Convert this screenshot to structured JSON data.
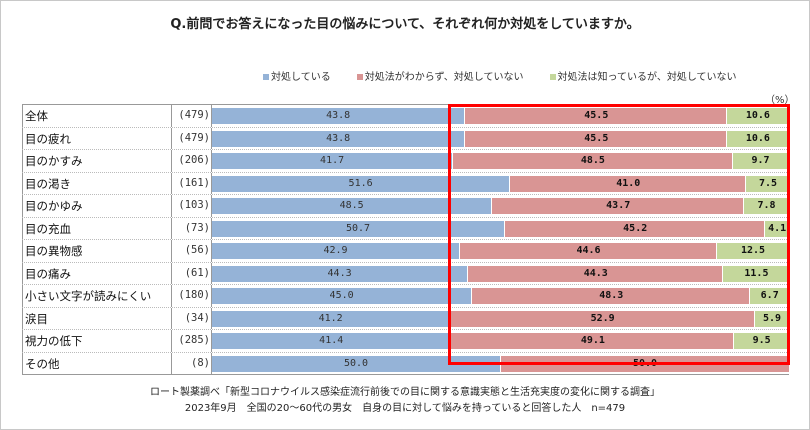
{
  "chart_data": {
    "type": "bar",
    "stacked": true,
    "orientation": "horizontal",
    "title": "Q.前問でお答えになった目の悩みについて、それぞれ何か対処をしていますか。",
    "unit": "（%）",
    "legend_position": "top",
    "series": [
      {
        "name": "対処している",
        "color": "#95b3d7",
        "values": [
          43.8,
          43.8,
          41.7,
          51.6,
          48.5,
          50.7,
          42.9,
          44.3,
          45.0,
          41.2,
          41.4,
          50.0
        ]
      },
      {
        "name": "対処法がわからず、対処していない",
        "color": "#d99594",
        "values": [
          45.5,
          45.5,
          48.5,
          41.0,
          43.7,
          45.2,
          44.6,
          44.3,
          48.3,
          52.9,
          49.1,
          50.0
        ]
      },
      {
        "name": "対処法は知っているが、対処していない",
        "color": "#c4d79b",
        "values": [
          10.6,
          10.6,
          9.7,
          7.5,
          7.8,
          4.1,
          12.5,
          11.5,
          6.7,
          5.9,
          9.5,
          null
        ]
      }
    ],
    "categories": [
      "全体",
      "目の疲れ",
      "目のかすみ",
      "目の渇き",
      "目のかゆみ",
      "目の充血",
      "目の異物感",
      "目の痛み",
      "小さい文字が読みにくい",
      "涙目",
      "視力の低下",
      "その他"
    ],
    "counts": [
      "(479)",
      "(479)",
      "(206)",
      "(161)",
      "(103)",
      "(73)",
      "(56)",
      "(61)",
      "(180)",
      "(34)",
      "(285)",
      "(8)"
    ],
    "xlim": [
      0,
      100
    ],
    "highlight_color": "#ff0000"
  },
  "source": {
    "line1": "ロート製薬調べ「新型コロナウイルス感染症流行前後での目に関する意識実態と生活充実度の変化に関する調査」",
    "line2": "2023年9月　全国の20～60代の男女　自身の目に対して悩みを持っていると回答した人　n=479"
  }
}
